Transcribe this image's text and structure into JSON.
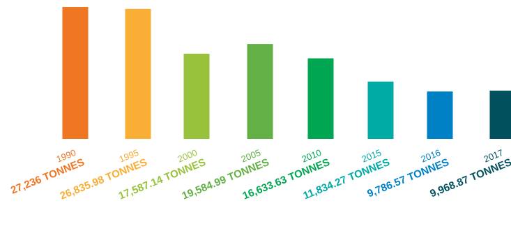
{
  "chart_data": {
    "type": "bar",
    "title": "",
    "xlabel": "",
    "ylabel": "",
    "grid": false,
    "categories": [
      "1990",
      "1995",
      "2000",
      "2005",
      "2010",
      "2015",
      "2016",
      "2017"
    ],
    "values": [
      27236,
      26835.98,
      17587.14,
      19584.99,
      16633.63,
      11834.27,
      9786.57,
      9968.87
    ],
    "value_labels": [
      "27,236 TONNES",
      "26,835.98 TONNES",
      "17,587.14 TONNES",
      "19,584.99 TONNES",
      "16,633.63 TONNES",
      "11,834.27 TONNES",
      "9,786.57 TONNES",
      "9,968.87 TONNES"
    ],
    "colors": [
      "#ef7622",
      "#f9ae35",
      "#98c23b",
      "#62b046",
      "#00a651",
      "#00aaa5",
      "#0081c6",
      "#00505e"
    ],
    "ylim": [
      0,
      27236
    ]
  }
}
